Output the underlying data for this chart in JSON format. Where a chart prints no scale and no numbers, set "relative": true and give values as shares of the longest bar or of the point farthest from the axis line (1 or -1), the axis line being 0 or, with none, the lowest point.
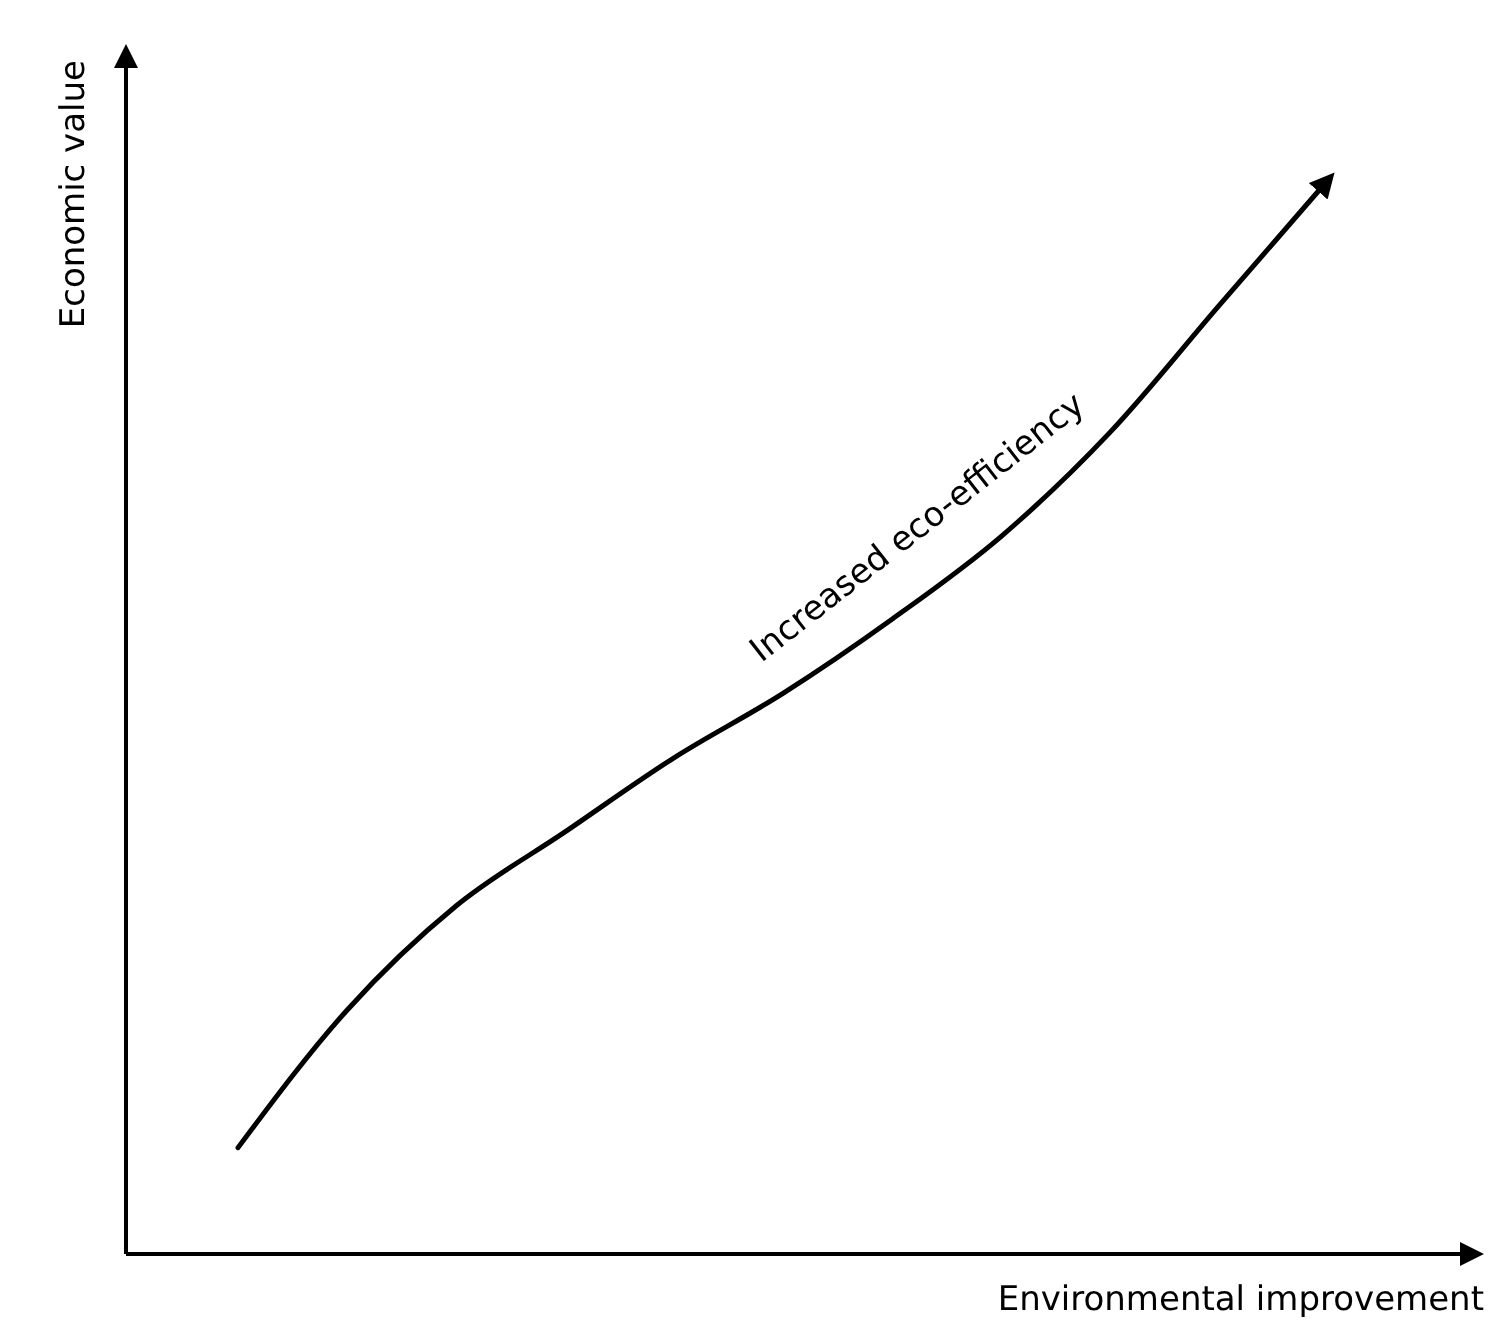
{
  "chart_data": {
    "type": "line",
    "relative": true,
    "xlabel": "Environmental improvement",
    "ylabel": "Economic value",
    "categories": [
      null,
      null,
      null,
      null,
      null,
      null,
      null,
      null,
      null,
      null,
      null
    ],
    "series": [
      {
        "color": "#000000",
        "values": [
          0.099,
          0.227,
          0.324,
          0.393,
          0.462,
          0.522,
          0.591,
          0.668,
          0.765,
          0.883,
          1
        ]
      }
    ],
    "annotations": [
      "Increased eco-efficiency"
    ],
    "marker": "none",
    "line_style": "solid"
  }
}
